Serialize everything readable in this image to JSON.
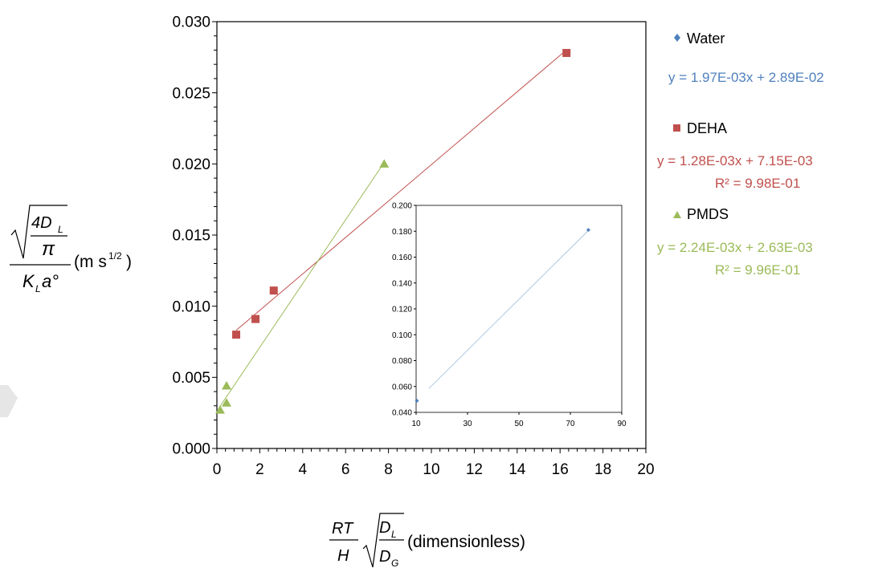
{
  "chart_data": [
    {
      "type": "scatter",
      "title": "",
      "xlim": [
        0,
        20
      ],
      "ylim": [
        0,
        0.03
      ],
      "x_ticks": [
        "0",
        "2",
        "4",
        "6",
        "8",
        "10",
        "12",
        "14",
        "16",
        "18",
        "20"
      ],
      "y_ticks": [
        "0.000",
        "0.005",
        "0.010",
        "0.015",
        "0.020",
        "0.025",
        "0.030"
      ],
      "xlabel": {
        "fraction_numerator": "RT",
        "fraction_denominator": "H",
        "sqrt_numerator": "D",
        "sqrt_numerator_sub": "L",
        "sqrt_denominator": "D",
        "sqrt_denominator_sub": "G",
        "unit": "(dimensionless)"
      },
      "ylabel": {
        "inner_numerator": "4D",
        "inner_numerator_sub": "L",
        "inner_denominator": "π",
        "denominator": "K",
        "denominator_sub": "L",
        "denominator_rest": "a°",
        "unit": "(m s",
        "unit_sup": "1/2",
        "unit_close": ")"
      },
      "grid": false,
      "legend_position": "right",
      "series": [
        {
          "name": "DEHA",
          "color": "#c0504d",
          "marker": "square",
          "x": [
            0.9,
            1.8,
            2.65,
            16.3
          ],
          "y": [
            0.008,
            0.0091,
            0.0111,
            0.0278
          ],
          "equation": "y = 1.28E-03x + 7.15E-03",
          "r_squared": "R² = 9.98E-01",
          "fit": {
            "slope": 0.00128,
            "intercept": 0.00715,
            "x_range": [
              0.9,
              16.3
            ]
          }
        },
        {
          "name": "PMDS",
          "color": "#9bbb59",
          "marker": "triangle",
          "x": [
            0.15,
            0.45,
            0.45,
            7.8
          ],
          "y": [
            0.0027,
            0.0032,
            0.0044,
            0.02
          ],
          "equation": "y = 2.24E-03x + 2.63E-03",
          "r_squared": "R² = 9.96E-01",
          "fit": {
            "slope": 0.00224,
            "intercept": 0.00263,
            "x_range": [
              0.15,
              7.8
            ]
          }
        },
        {
          "name": "Water",
          "color": "#4f81bd",
          "marker": "diamond",
          "equation": "y = 1.97E-03x + 2.89E-02",
          "r_squared": ""
        }
      ]
    },
    {
      "type": "scatter",
      "title": "",
      "inset": true,
      "xlim": [
        10,
        90
      ],
      "ylim": [
        0.04,
        0.2
      ],
      "x_ticks": [
        "10",
        "30",
        "50",
        "70",
        "90"
      ],
      "y_ticks": [
        "0.040",
        "0.060",
        "0.080",
        "0.100",
        "0.120",
        "0.140",
        "0.160",
        "0.180",
        "0.200"
      ],
      "grid": false,
      "series": [
        {
          "name": "Water",
          "color": "#4f81bd",
          "marker": "diamond",
          "x": [
            10.3,
            77
          ],
          "y": [
            0.049,
            0.181
          ],
          "fit": {
            "slope": 0.00197,
            "intercept": 0.0289,
            "x_range": [
              15,
              77
            ]
          }
        }
      ]
    }
  ]
}
